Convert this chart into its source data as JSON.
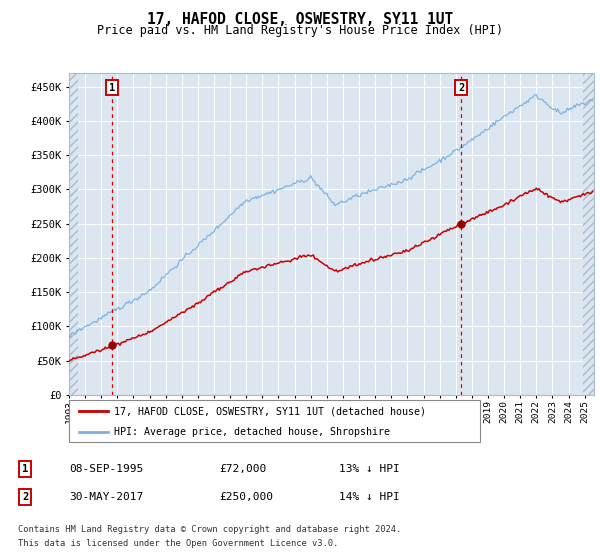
{
  "title": "17, HAFOD CLOSE, OSWESTRY, SY11 1UT",
  "subtitle": "Price paid vs. HM Land Registry's House Price Index (HPI)",
  "legend_line1": "17, HAFOD CLOSE, OSWESTRY, SY11 1UT (detached house)",
  "legend_line2": "HPI: Average price, detached house, Shropshire",
  "annotation1_date": "08-SEP-1995",
  "annotation1_price": "£72,000",
  "annotation1_hpi": "13% ↓ HPI",
  "annotation2_date": "30-MAY-2017",
  "annotation2_price": "£250,000",
  "annotation2_hpi": "14% ↓ HPI",
  "footer1": "Contains HM Land Registry data © Crown copyright and database right 2024.",
  "footer2": "This data is licensed under the Open Government Licence v3.0.",
  "hpi_color": "#7ab0e0",
  "price_color": "#cc0000",
  "marker_color": "#990000",
  "vline_color": "#dd0000",
  "bg_color": "#dce6f1",
  "hatch_color": "#aabbcc",
  "grid_color": "#ffffff",
  "border_color": "#aabbcc",
  "ylim": [
    0,
    470000
  ],
  "yticks": [
    0,
    50000,
    100000,
    150000,
    200000,
    250000,
    300000,
    350000,
    400000,
    450000
  ],
  "year_start": 1993,
  "year_end": 2025
}
